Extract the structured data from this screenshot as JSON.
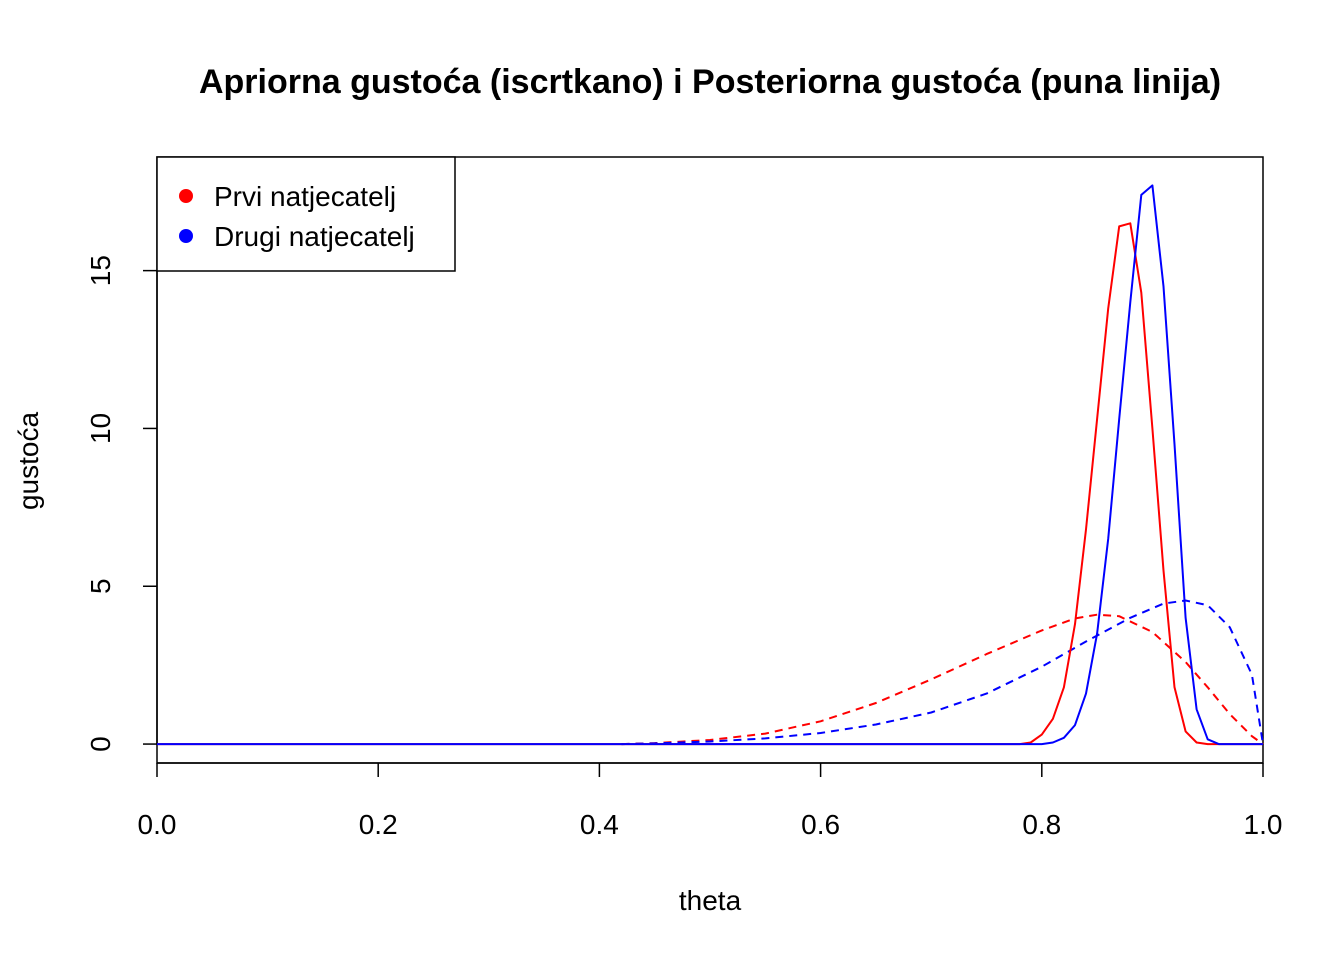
{
  "chart_data": {
    "type": "line",
    "title": "Apriorna gustoća (iscrtkano) i Posteriorna gustoća (puna linija)",
    "xlabel": "theta",
    "ylabel": "gustoća",
    "xlim": [
      0,
      1
    ],
    "ylim": [
      -0.6,
      18.6
    ],
    "x_ticks": [
      0.0,
      0.2,
      0.4,
      0.6,
      0.8,
      1.0
    ],
    "x_tick_labels": [
      "0.0",
      "0.2",
      "0.4",
      "0.6",
      "0.8",
      "1.0"
    ],
    "y_ticks": [
      0,
      5,
      10,
      15
    ],
    "y_tick_labels": [
      "0",
      "5",
      "10",
      "15"
    ],
    "grid": false,
    "legend": {
      "position": "top-left",
      "entries": [
        {
          "label": "Prvi natjecatelj",
          "color": "#ff0000"
        },
        {
          "label": "Drugi natjecatelj",
          "color": "#0000ff"
        }
      ]
    },
    "series": [
      {
        "color": "#ff0000",
        "line": "solid",
        "points": [
          [
            0,
            0
          ],
          [
            0.78,
            0
          ],
          [
            0.79,
            0.05
          ],
          [
            0.8,
            0.3
          ],
          [
            0.81,
            0.8
          ],
          [
            0.82,
            1.8
          ],
          [
            0.83,
            3.8
          ],
          [
            0.84,
            6.8
          ],
          [
            0.85,
            10.3
          ],
          [
            0.86,
            13.8
          ],
          [
            0.87,
            16.4
          ],
          [
            0.88,
            16.5
          ],
          [
            0.89,
            14.3
          ],
          [
            0.9,
            10.0
          ],
          [
            0.91,
            5.5
          ],
          [
            0.92,
            1.8
          ],
          [
            0.93,
            0.4
          ],
          [
            0.94,
            0.05
          ],
          [
            0.95,
            0
          ],
          [
            1.0,
            0
          ]
        ]
      },
      {
        "color": "#0000ff",
        "line": "solid",
        "points": [
          [
            0,
            0
          ],
          [
            0.8,
            0
          ],
          [
            0.81,
            0.05
          ],
          [
            0.82,
            0.2
          ],
          [
            0.83,
            0.6
          ],
          [
            0.84,
            1.6
          ],
          [
            0.85,
            3.5
          ],
          [
            0.86,
            6.5
          ],
          [
            0.87,
            10.3
          ],
          [
            0.88,
            14.0
          ],
          [
            0.89,
            17.4
          ],
          [
            0.9,
            17.7
          ],
          [
            0.91,
            14.5
          ],
          [
            0.92,
            9.5
          ],
          [
            0.93,
            4.0
          ],
          [
            0.94,
            1.1
          ],
          [
            0.95,
            0.15
          ],
          [
            0.96,
            0
          ],
          [
            1.0,
            0
          ]
        ]
      },
      {
        "color": "#ff0000",
        "line": "dashed",
        "points": [
          [
            0.42,
            0
          ],
          [
            0.45,
            0.03
          ],
          [
            0.5,
            0.13
          ],
          [
            0.55,
            0.33
          ],
          [
            0.6,
            0.72
          ],
          [
            0.65,
            1.3
          ],
          [
            0.7,
            2.05
          ],
          [
            0.75,
            2.85
          ],
          [
            0.8,
            3.6
          ],
          [
            0.83,
            3.98
          ],
          [
            0.85,
            4.1
          ],
          [
            0.87,
            4.05
          ],
          [
            0.9,
            3.55
          ],
          [
            0.93,
            2.6
          ],
          [
            0.95,
            1.8
          ],
          [
            0.97,
            0.95
          ],
          [
            0.99,
            0.25
          ],
          [
            1.0,
            0
          ]
        ]
      },
      {
        "color": "#0000ff",
        "line": "dashed",
        "points": [
          [
            0.42,
            0
          ],
          [
            0.45,
            0.02
          ],
          [
            0.5,
            0.08
          ],
          [
            0.55,
            0.18
          ],
          [
            0.6,
            0.35
          ],
          [
            0.65,
            0.62
          ],
          [
            0.7,
            1.0
          ],
          [
            0.75,
            1.6
          ],
          [
            0.8,
            2.45
          ],
          [
            0.84,
            3.25
          ],
          [
            0.88,
            4.0
          ],
          [
            0.91,
            4.45
          ],
          [
            0.93,
            4.55
          ],
          [
            0.95,
            4.4
          ],
          [
            0.97,
            3.7
          ],
          [
            0.99,
            2.2
          ],
          [
            1.0,
            0
          ]
        ]
      }
    ]
  }
}
